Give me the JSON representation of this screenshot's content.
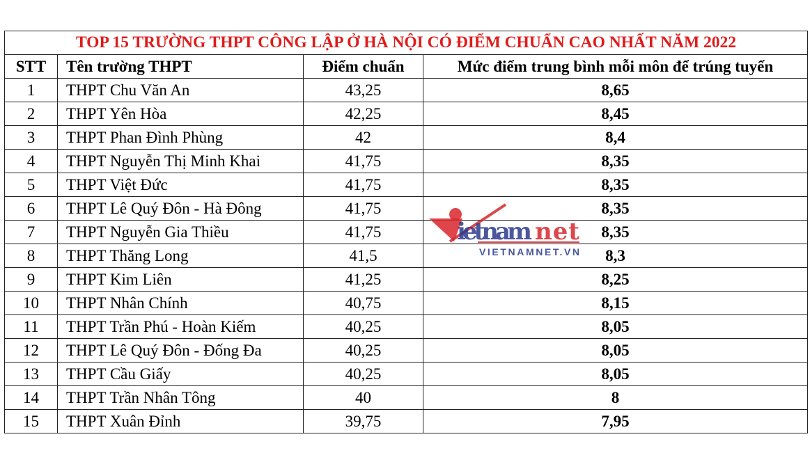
{
  "title": "TOP 15 TRƯỜNG THPT CÔNG LẬP Ở HÀ NỘI CÓ ĐIỂM CHUẨN CAO NHẤT NĂM 2022",
  "headers": [
    "STT",
    "Tên trường THPT",
    "Điểm chuẩn",
    "Mức điểm trung bình mỗi môn để trúng tuyển"
  ],
  "rows": [
    {
      "stt": "1",
      "name": "THPT Chu Văn An",
      "score": "43,25",
      "avg": "8,65"
    },
    {
      "stt": "2",
      "name": "THPT Yên Hòa",
      "score": "42,25",
      "avg": "8,45"
    },
    {
      "stt": "3",
      "name": "THPT Phan Đình Phùng",
      "score": "42",
      "avg": "8,4"
    },
    {
      "stt": "4",
      "name": "THPT Nguyễn Thị Minh Khai",
      "score": "41,75",
      "avg": "8,35"
    },
    {
      "stt": "5",
      "name": "THPT Việt Đức",
      "score": "41,75",
      "avg": "8,35"
    },
    {
      "stt": "6",
      "name": "THPT Lê Quý Đôn - Hà Đông",
      "score": "41,75",
      "avg": "8,35"
    },
    {
      "stt": "7",
      "name": "THPT Nguyễn Gia Thiều",
      "score": "41,75",
      "avg": "8,35"
    },
    {
      "stt": "8",
      "name": "THPT Thăng Long",
      "score": "41,5",
      "avg": "8,3"
    },
    {
      "stt": "9",
      "name": "THPT Kim Liên",
      "score": "41,25",
      "avg": "8,25"
    },
    {
      "stt": "10",
      "name": "THPT Nhân Chính",
      "score": "40,75",
      "avg": "8,15"
    },
    {
      "stt": "11",
      "name": "THPT Trần Phú - Hoàn Kiếm",
      "score": "40,25",
      "avg": "8,05"
    },
    {
      "stt": "12",
      "name": "THPT Lê Quý Đôn - Đống Đa",
      "score": "40,25",
      "avg": "8,05"
    },
    {
      "stt": "13",
      "name": "THPT Cầu Giấy",
      "score": "40,25",
      "avg": "8,05"
    },
    {
      "stt": "14",
      "name": "THPT Trần Nhân Tông",
      "score": "40",
      "avg": "8"
    },
    {
      "stt": "15",
      "name": "THPT Xuân Đỉnh",
      "score": "39,75",
      "avg": "7,95"
    }
  ],
  "watermark": {
    "logo": "vietnamnet",
    "url": "VIETNAMNET.VN"
  },
  "colors": {
    "title": "#e01b1b",
    "watermark_red": "#d9262b",
    "watermark_blue": "#2b3a8f"
  }
}
